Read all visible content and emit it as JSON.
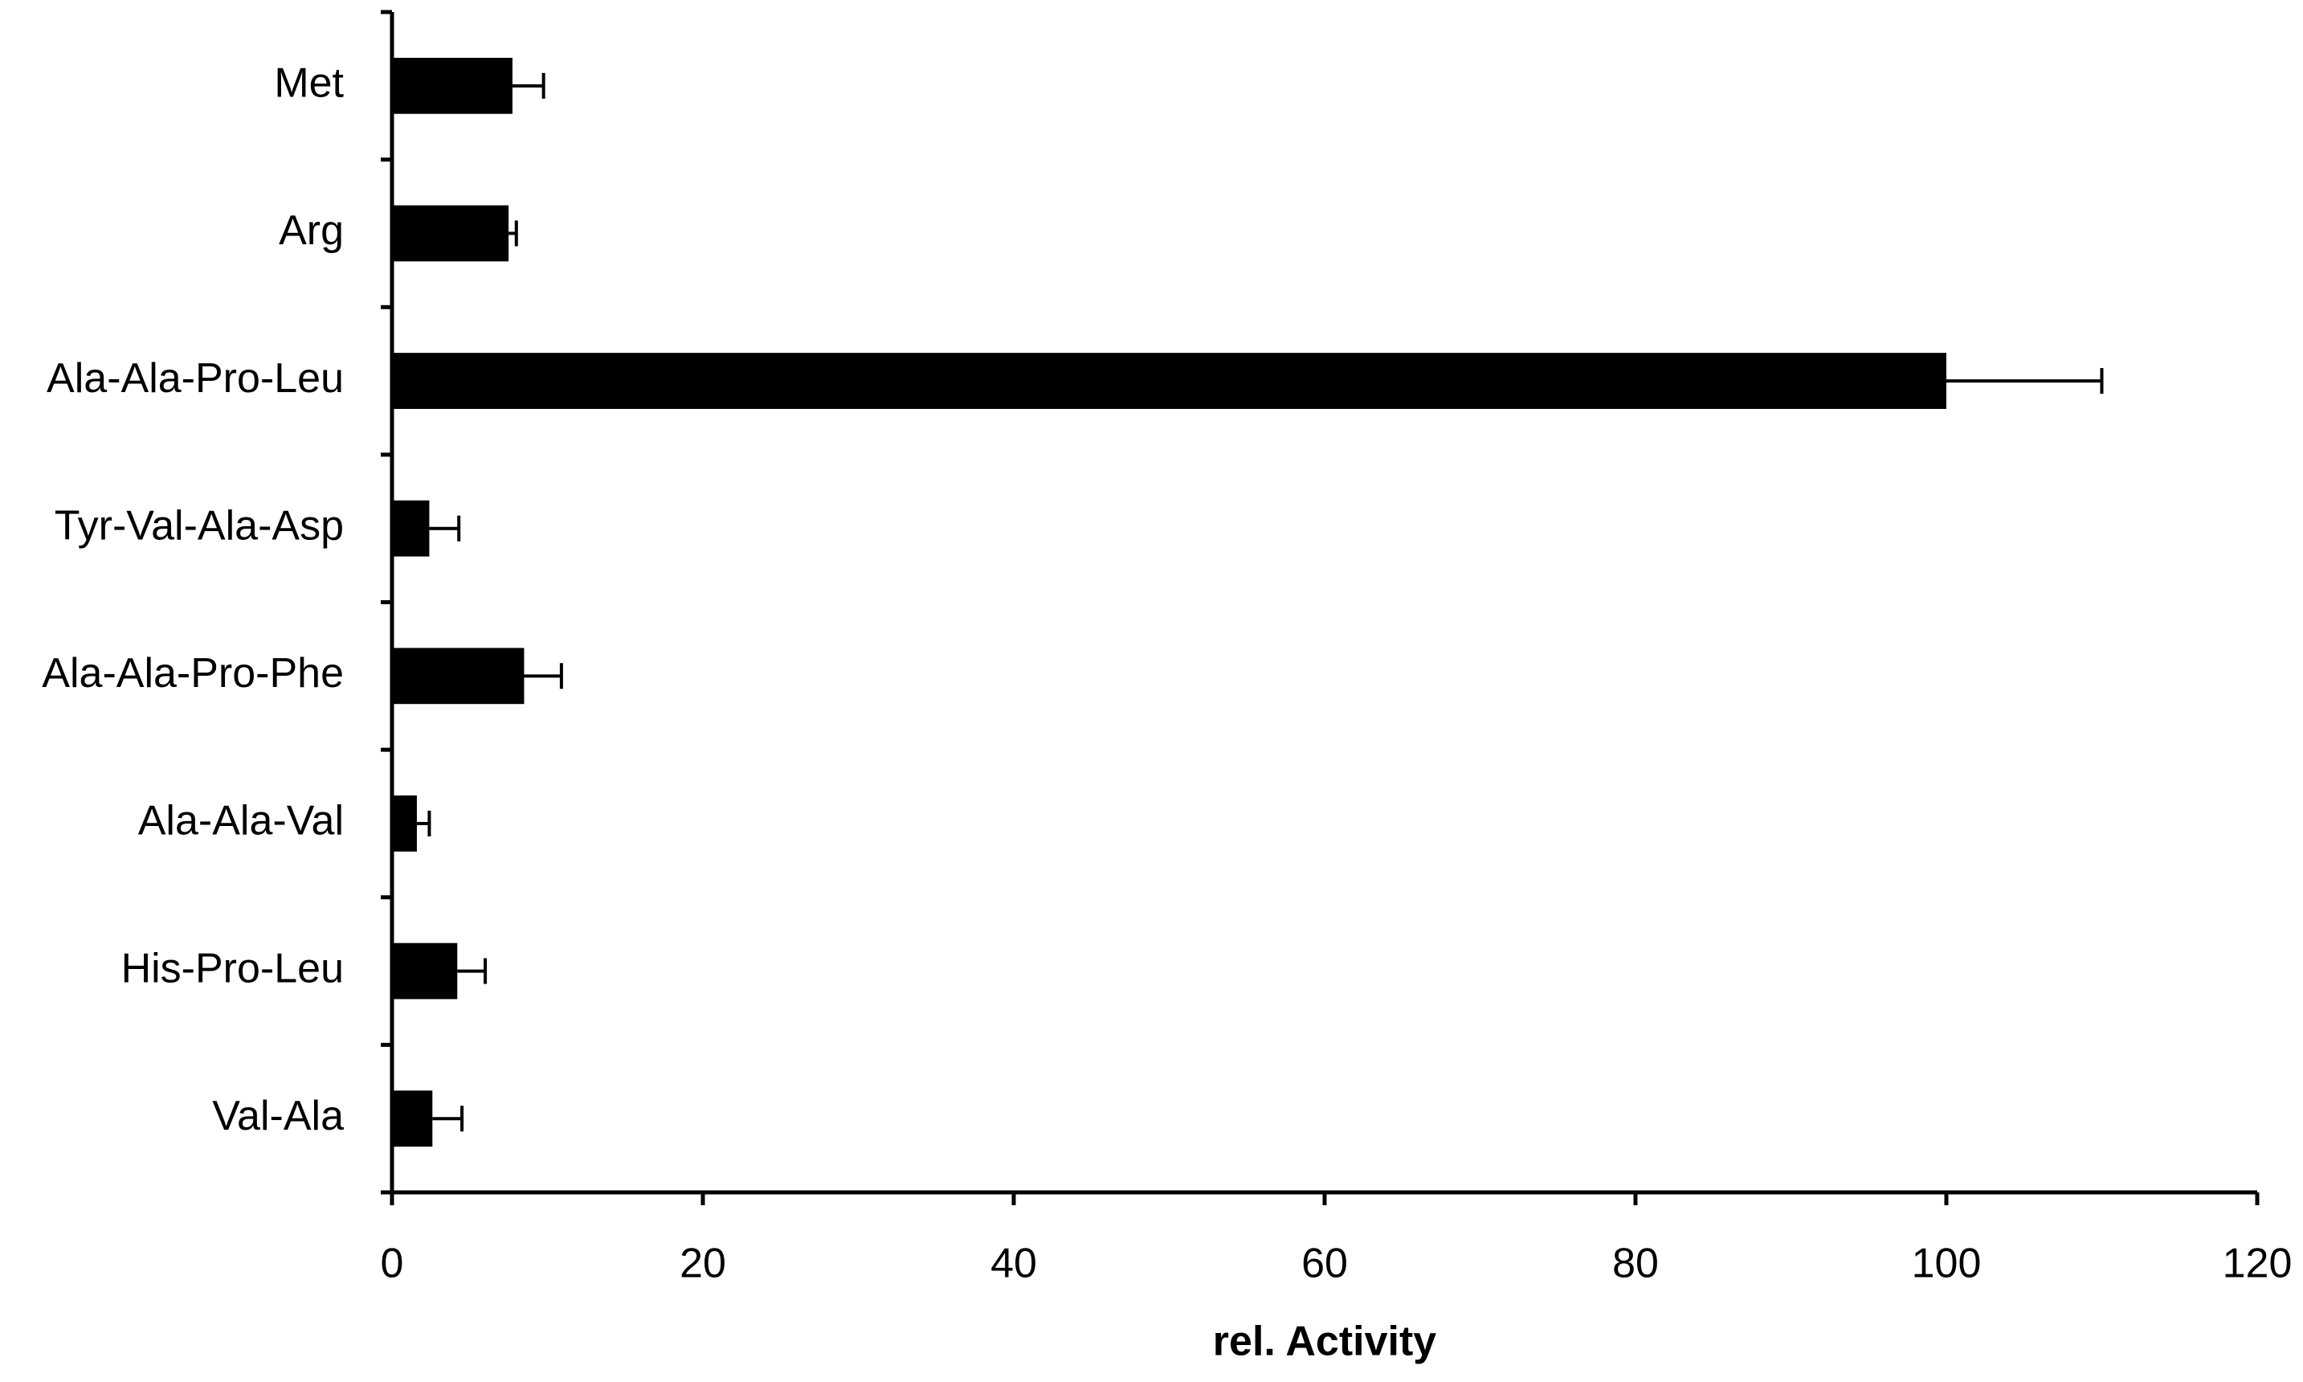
{
  "chart_data": {
    "type": "bar",
    "orientation": "horizontal",
    "x_label": "rel. Activity",
    "categories": [
      "Met",
      "Arg",
      "Ala-Ala-Pro-Leu",
      "Tyr-Val-Ala-Asp",
      "Ala-Ala-Pro-Phe",
      "Ala-Ala-Val",
      "His-Pro-Leu",
      "Val-Ala"
    ],
    "values": [
      7.75,
      7.5,
      100,
      2.4,
      8.5,
      1.6,
      4.2,
      2.6
    ],
    "errors": [
      2.0,
      0.5,
      10,
      1.9,
      2.4,
      0.8,
      1.8,
      1.9
    ],
    "color": "#000000",
    "xlim": [
      0,
      120
    ],
    "xticks": [
      0,
      20,
      40,
      60,
      80,
      100,
      120
    ],
    "grid": false
  }
}
